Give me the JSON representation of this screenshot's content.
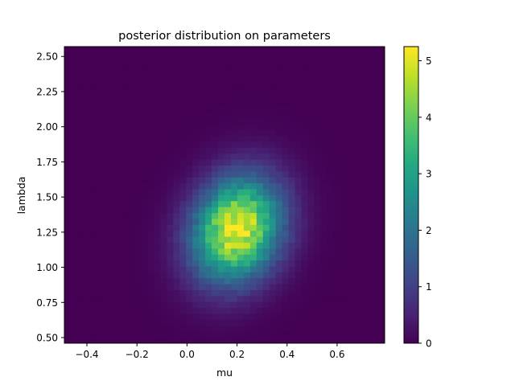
{
  "chart_data": {
    "type": "heatmap",
    "title": "posterior distribution on parameters",
    "xlabel": "mu",
    "ylabel": "lambda",
    "xlim": [
      -0.49,
      0.79
    ],
    "ylim": [
      0.46,
      2.57
    ],
    "x_ticks": [
      -0.4,
      -0.2,
      0.0,
      0.2,
      0.4,
      0.6
    ],
    "x_tick_labels": [
      "−0.4",
      "−0.2",
      "0.0",
      "0.2",
      "0.4",
      "0.6"
    ],
    "y_ticks": [
      0.5,
      0.75,
      1.0,
      1.25,
      1.5,
      1.75,
      2.0,
      2.25,
      2.5
    ],
    "y_tick_labels": [
      "0.50",
      "0.75",
      "1.00",
      "1.25",
      "1.50",
      "1.75",
      "2.00",
      "2.25",
      "2.50"
    ],
    "colormap": "viridis",
    "colorbar": {
      "range": [
        0,
        5.25
      ],
      "ticks": [
        0,
        1,
        2,
        3,
        4,
        5
      ],
      "tick_labels": [
        "0",
        "1",
        "2",
        "3",
        "4",
        "5"
      ]
    },
    "density_summary": {
      "peak_mu": 0.2,
      "peak_lambda": 1.27,
      "peak_density": 5.2,
      "sd_mu": 0.12,
      "sd_lambda": 0.25
    },
    "grid": false
  }
}
